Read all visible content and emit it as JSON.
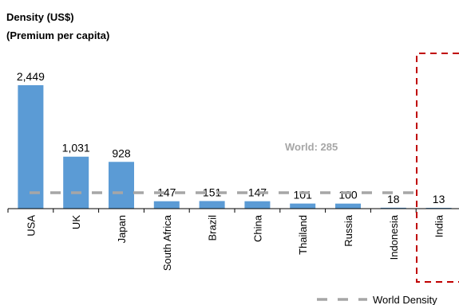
{
  "chart_data": {
    "type": "bar",
    "title": "Density (US$)",
    "subtitle": "(Premium per capita)",
    "categories": [
      "USA",
      "UK",
      "Japan",
      "South Africa",
      "Brazil",
      "China",
      "Thailand",
      "Russia",
      "Indonesia",
      "India"
    ],
    "values": [
      2449,
      1031,
      928,
      147,
      151,
      147,
      101,
      100,
      18,
      13
    ],
    "value_labels": [
      "2,449",
      "1,031",
      "928",
      "147",
      "151",
      "147",
      "101",
      "100",
      "18",
      "13"
    ],
    "reference_line": {
      "name": "World Density",
      "value": 285,
      "annotation": "World:  285"
    },
    "highlighted_category": "India",
    "ylim": [
      0,
      2449
    ],
    "colors": {
      "bar": "#5b9bd5",
      "reference": "#a6a6a6",
      "highlight": "#c00000"
    },
    "legend_placement": "bottom-right",
    "grid": false
  }
}
